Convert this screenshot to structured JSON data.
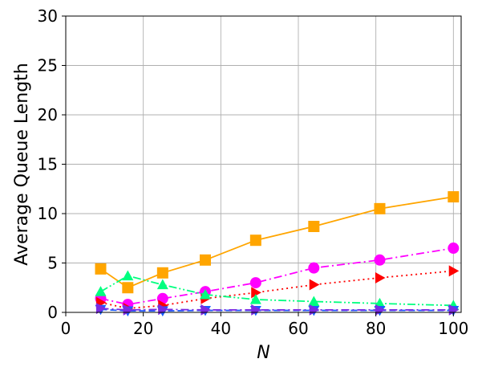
{
  "chart_data": {
    "type": "line",
    "xlabel": "N",
    "ylabel": "Average Queue Length",
    "xlim": [
      0,
      102
    ],
    "ylim": [
      0,
      30
    ],
    "xticks": [
      0,
      20,
      40,
      60,
      80,
      100
    ],
    "yticks": [
      0,
      5,
      10,
      15,
      20,
      25,
      30
    ],
    "grid": true,
    "x": [
      9,
      16,
      25,
      36,
      49,
      64,
      81,
      100
    ],
    "series": [
      {
        "color": "#ffa500",
        "marker": "square",
        "dash": "solid",
        "values": [
          4.4,
          2.5,
          4.0,
          5.3,
          7.3,
          8.7,
          10.5,
          11.7
        ]
      },
      {
        "color": "#ff00ff",
        "marker": "circle",
        "dash": "dashdot",
        "values": [
          1.4,
          0.8,
          1.4,
          2.1,
          3.0,
          4.5,
          5.3,
          6.5
        ]
      },
      {
        "color": "#ff0000",
        "marker": "triangle-right",
        "dash": "dotted",
        "values": [
          1.0,
          0.4,
          0.7,
          1.4,
          2.0,
          2.8,
          3.5,
          4.2
        ]
      },
      {
        "color": "#00ff7f",
        "marker": "triangle-up",
        "dash": "dashdotdot",
        "values": [
          2.1,
          3.7,
          2.8,
          1.8,
          1.3,
          1.1,
          0.9,
          0.7
        ]
      },
      {
        "color": "#1a5cff",
        "marker": "triangle-down",
        "dash": "dashed",
        "values": [
          0.3,
          0.15,
          0.15,
          0.2,
          0.2,
          0.2,
          0.2,
          0.2
        ]
      },
      {
        "color": "#7b2be2",
        "marker": "triangle-right",
        "dash": "dashdot",
        "values": [
          0.4,
          0.25,
          0.3,
          0.25,
          0.25,
          0.25,
          0.25,
          0.25
        ]
      }
    ]
  }
}
